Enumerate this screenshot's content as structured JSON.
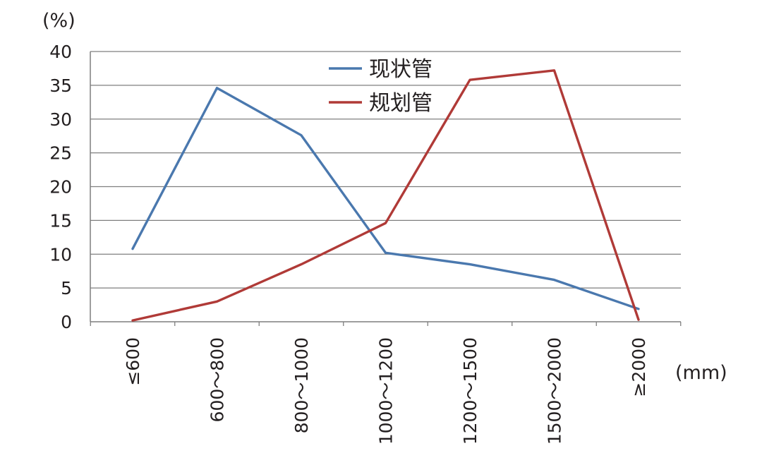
{
  "chart_data": {
    "type": "line",
    "title": "",
    "y_unit": "(%)",
    "x_unit": "(mm)",
    "categories": [
      "≤600",
      "600～800",
      "800～1000",
      "1000～1200",
      "1200～1500",
      "1500～2000",
      "≥2000"
    ],
    "series": [
      {
        "name": "现状管",
        "color": "#4a78ae",
        "values": [
          10.8,
          34.6,
          27.6,
          10.2,
          8.5,
          6.2,
          1.9
        ]
      },
      {
        "name": "规划管",
        "color": "#b03a37",
        "values": [
          0.2,
          3.0,
          8.5,
          14.6,
          35.8,
          37.2,
          0.3
        ]
      }
    ],
    "ylim": [
      0,
      40
    ],
    "yticks": [
      0,
      5,
      10,
      15,
      20,
      25,
      30,
      35,
      40
    ],
    "grid": true,
    "legend": "top-center"
  }
}
